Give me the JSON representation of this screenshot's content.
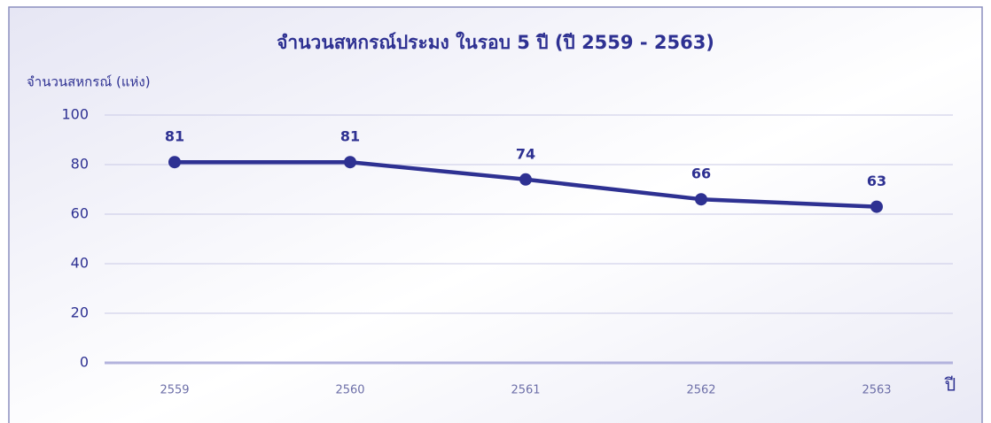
{
  "chart_data": {
    "type": "line",
    "title": "จำนวนสหกรณ์ประมง ในรอบ 5 ปี (ปี 2559 - 2563)",
    "y_label": "จำนวนสหกรณ์ (แห่ง)",
    "x_label": "ปี",
    "categories": [
      "2559",
      "2560",
      "2561",
      "2562",
      "2563"
    ],
    "series": [
      {
        "name": "จำนวนสหกรณ์",
        "color": "#2e3192",
        "values": [
          81,
          81,
          74,
          66,
          63
        ]
      }
    ],
    "ylim": [
      0,
      100
    ],
    "yticks": [
      0,
      20,
      40,
      60,
      80,
      100
    ],
    "grid": true,
    "data_labels": true
  }
}
